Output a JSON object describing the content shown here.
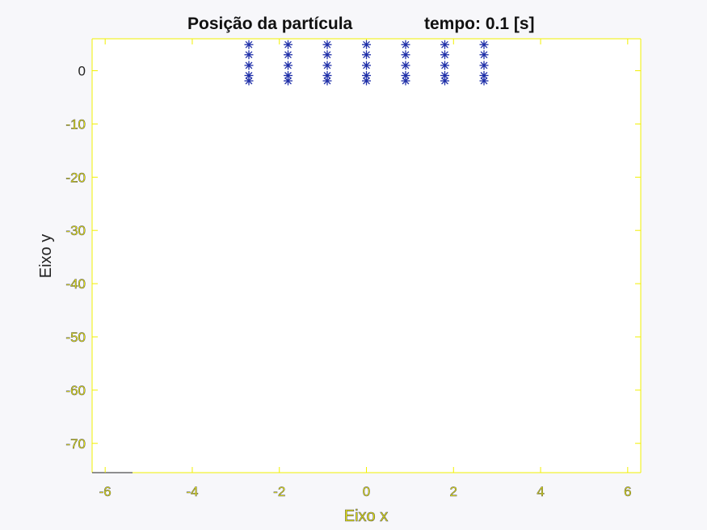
{
  "chart_data": {
    "type": "scatter",
    "title": "Posição da partícula",
    "subtitle": "tempo: 0.1 [s]",
    "xlabel": "Eixo x",
    "ylabel": "Eixo y",
    "xlim": [
      -6.3,
      6.3
    ],
    "ylim": [
      -75.5,
      6
    ],
    "xticks": [
      -6,
      -4,
      -2,
      0,
      2,
      4,
      6
    ],
    "yticks": [
      0,
      -10,
      -20,
      -30,
      -40,
      -50,
      -60,
      -70
    ],
    "xtick_labels": [
      "-6",
      "-4",
      "-2",
      "0",
      "2",
      "4",
      "6"
    ],
    "ytick_labels": [
      "0",
      "-10",
      "-20",
      "-30",
      "-40",
      "-50",
      "-60",
      "-70"
    ],
    "marker": "asterisk",
    "marker_color": "#1f2fa8",
    "axis_color": "#f2f000",
    "grid": false,
    "series": [
      {
        "x": [
          -2.7,
          -2.7,
          -2.7,
          -2.7,
          -2.7,
          -1.8,
          -1.8,
          -1.8,
          -1.8,
          -1.8,
          -0.9,
          -0.9,
          -0.9,
          -0.9,
          -0.9,
          0.0,
          0.0,
          0.0,
          0.0,
          0.0,
          0.9,
          0.9,
          0.9,
          0.9,
          0.9,
          1.8,
          1.8,
          1.8,
          1.8,
          1.8,
          2.7,
          2.7,
          2.7,
          2.7,
          2.7
        ],
        "y": [
          4.9,
          3.0,
          1.0,
          -0.9,
          -1.9,
          4.9,
          3.0,
          1.0,
          -0.9,
          -1.9,
          4.9,
          3.0,
          1.0,
          -0.9,
          -1.9,
          4.9,
          3.0,
          1.0,
          -0.9,
          -1.9,
          4.9,
          3.0,
          1.0,
          -0.9,
          -1.9,
          4.9,
          3.0,
          1.0,
          -0.9,
          -1.9,
          4.9,
          3.0,
          1.0,
          -0.9,
          -1.9
        ]
      }
    ]
  }
}
